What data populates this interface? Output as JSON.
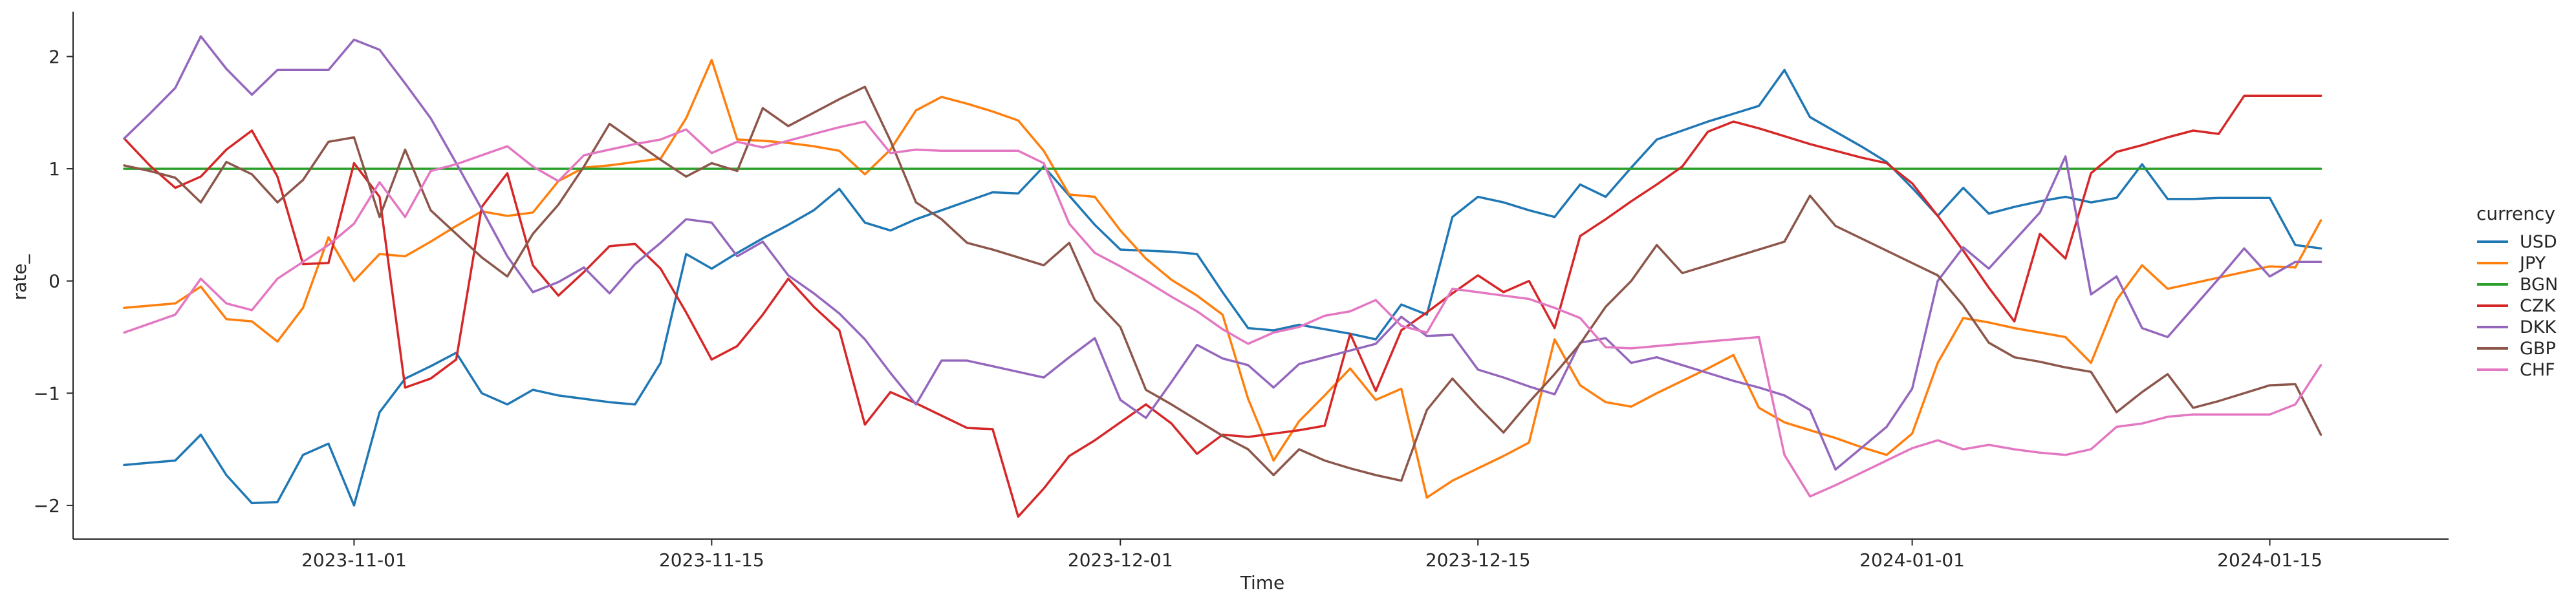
{
  "chart_data": {
    "type": "line",
    "xlabel": "Time",
    "ylabel": "rate_",
    "x_type": "date",
    "xlim": [
      "2023-10-21",
      "2024-01-22"
    ],
    "ylim": [
      -2.3,
      2.4
    ],
    "yticks": [
      -2,
      -1,
      0,
      1,
      2
    ],
    "ytick_labels": [
      "−2",
      "−1",
      "0",
      "1",
      "2"
    ],
    "xticks": [
      "2023-11-01",
      "2023-11-15",
      "2023-12-01",
      "2023-12-15",
      "2024-01-01",
      "2024-01-15"
    ],
    "grid": false,
    "legend": {
      "title": "currency",
      "placement": "right"
    },
    "colors": {
      "axis": "#262626",
      "text": "#262626",
      "background": "#ffffff"
    },
    "x": [
      "2023-10-23",
      "2023-10-24",
      "2023-10-25",
      "2023-10-26",
      "2023-10-27",
      "2023-10-28",
      "2023-10-29",
      "2023-10-30",
      "2023-10-31",
      "2023-11-01",
      "2023-11-02",
      "2023-11-03",
      "2023-11-04",
      "2023-11-05",
      "2023-11-06",
      "2023-11-07",
      "2023-11-08",
      "2023-11-09",
      "2023-11-10",
      "2023-11-11",
      "2023-11-12",
      "2023-11-13",
      "2023-11-14",
      "2023-11-15",
      "2023-11-16",
      "2023-11-17",
      "2023-11-18",
      "2023-11-19",
      "2023-11-20",
      "2023-11-21",
      "2023-11-22",
      "2023-11-23",
      "2023-11-24",
      "2023-11-25",
      "2023-11-26",
      "2023-11-27",
      "2023-11-28",
      "2023-11-29",
      "2023-11-30",
      "2023-12-01",
      "2023-12-02",
      "2023-12-03",
      "2023-12-04",
      "2023-12-05",
      "2023-12-06",
      "2023-12-07",
      "2023-12-08",
      "2023-12-09",
      "2023-12-10",
      "2023-12-11",
      "2023-12-12",
      "2023-12-13",
      "2023-12-14",
      "2023-12-15",
      "2023-12-16",
      "2023-12-17",
      "2023-12-18",
      "2023-12-19",
      "2023-12-20",
      "2023-12-21",
      "2023-12-22",
      "2023-12-23",
      "2023-12-24",
      "2023-12-25",
      "2023-12-26",
      "2023-12-27",
      "2023-12-28",
      "2023-12-29",
      "2023-12-30",
      "2023-12-31",
      "2024-01-01",
      "2024-01-02",
      "2024-01-03",
      "2024-01-04",
      "2024-01-05",
      "2024-01-06",
      "2024-01-07",
      "2024-01-08",
      "2024-01-09",
      "2024-01-10",
      "2024-01-11",
      "2024-01-12",
      "2024-01-13",
      "2024-01-14",
      "2024-01-15",
      "2024-01-16",
      "2024-01-17"
    ],
    "series": [
      {
        "name": "USD",
        "color": "#1f77b4",
        "values": [
          -1.64,
          -1.62,
          -1.6,
          -1.37,
          -1.73,
          -1.98,
          -1.97,
          -1.55,
          -1.45,
          -2.0,
          -1.17,
          -0.87,
          -0.76,
          -0.64,
          -1.0,
          -1.1,
          -0.97,
          -1.02,
          -1.05,
          -1.08,
          -1.1,
          -0.73,
          0.24,
          0.11,
          0.25,
          0.38,
          0.5,
          0.63,
          0.82,
          0.52,
          0.45,
          0.55,
          0.63,
          0.71,
          0.79,
          0.78,
          1.02,
          0.76,
          0.5,
          0.28,
          0.27,
          0.26,
          0.24,
          -0.1,
          -0.42,
          -0.44,
          -0.39,
          -0.43,
          -0.47,
          -0.52,
          -0.21,
          -0.3,
          0.57,
          0.75,
          0.7,
          0.63,
          0.57,
          0.86,
          0.75,
          1.01,
          1.26,
          1.34,
          1.42,
          1.49,
          1.56,
          1.88,
          1.46,
          1.33,
          1.2,
          1.06,
          0.83,
          0.58,
          0.83,
          0.6,
          0.66,
          0.71,
          0.75,
          0.7,
          0.74,
          1.04,
          0.73,
          0.73,
          0.74,
          0.74,
          0.74,
          0.32,
          0.29
        ]
      },
      {
        "name": "JPY",
        "color": "#ff7f0e",
        "values": [
          -0.24,
          -0.22,
          -0.2,
          -0.05,
          -0.34,
          -0.36,
          -0.54,
          -0.24,
          0.39,
          0.0,
          0.24,
          0.22,
          0.35,
          0.49,
          0.62,
          0.58,
          0.61,
          0.89,
          1.01,
          1.03,
          1.06,
          1.09,
          1.45,
          1.97,
          1.26,
          1.25,
          1.23,
          1.2,
          1.16,
          0.95,
          1.17,
          1.52,
          1.64,
          1.58,
          1.51,
          1.43,
          1.16,
          0.77,
          0.75,
          0.45,
          0.2,
          0.01,
          -0.13,
          -0.3,
          -1.05,
          -1.6,
          -1.25,
          -1.02,
          -0.78,
          -1.06,
          -0.96,
          -1.93,
          -1.78,
          -1.67,
          -1.56,
          -1.44,
          -0.52,
          -0.93,
          -1.08,
          -1.12,
          -1.0,
          -0.89,
          -0.78,
          -0.66,
          -1.13,
          -1.26,
          -1.33,
          -1.4,
          -1.48,
          -1.55,
          -1.36,
          -0.73,
          -0.33,
          -0.37,
          -0.42,
          -0.46,
          -0.5,
          -0.73,
          -0.17,
          0.14,
          -0.07,
          -0.02,
          0.03,
          0.08,
          0.13,
          0.12,
          0.54
        ]
      },
      {
        "name": "BGN",
        "color": "#2ca02c",
        "values": [
          1.0,
          1.0,
          1.0,
          1.0,
          1.0,
          1.0,
          1.0,
          1.0,
          1.0,
          1.0,
          1.0,
          1.0,
          1.0,
          1.0,
          1.0,
          1.0,
          1.0,
          1.0,
          1.0,
          1.0,
          1.0,
          1.0,
          1.0,
          1.0,
          1.0,
          1.0,
          1.0,
          1.0,
          1.0,
          1.0,
          1.0,
          1.0,
          1.0,
          1.0,
          1.0,
          1.0,
          1.0,
          1.0,
          1.0,
          1.0,
          1.0,
          1.0,
          1.0,
          1.0,
          1.0,
          1.0,
          1.0,
          1.0,
          1.0,
          1.0,
          1.0,
          1.0,
          1.0,
          1.0,
          1.0,
          1.0,
          1.0,
          1.0,
          1.0,
          1.0,
          1.0,
          1.0,
          1.0,
          1.0,
          1.0,
          1.0,
          1.0,
          1.0,
          1.0,
          1.0,
          1.0,
          1.0,
          1.0,
          1.0,
          1.0,
          1.0,
          1.0,
          1.0,
          1.0,
          1.0,
          1.0,
          1.0,
          1.0,
          1.0,
          1.0,
          1.0,
          1.0
        ]
      },
      {
        "name": "CZK",
        "color": "#d62728",
        "values": [
          1.27,
          1.03,
          0.83,
          0.93,
          1.17,
          1.34,
          0.93,
          0.15,
          0.16,
          1.05,
          0.75,
          -0.95,
          -0.87,
          -0.7,
          0.66,
          0.96,
          0.14,
          -0.13,
          0.08,
          0.31,
          0.33,
          0.11,
          -0.28,
          -0.7,
          -0.58,
          -0.3,
          0.02,
          -0.23,
          -0.44,
          -1.28,
          -0.99,
          -1.09,
          -1.2,
          -1.31,
          -1.32,
          -2.1,
          -1.85,
          -1.56,
          -1.42,
          -1.26,
          -1.1,
          -1.27,
          -1.54,
          -1.37,
          -1.39,
          -1.36,
          -1.33,
          -1.29,
          -0.47,
          -0.98,
          -0.44,
          -0.28,
          -0.11,
          0.05,
          -0.1,
          0.0,
          -0.42,
          0.4,
          0.55,
          0.71,
          0.86,
          1.02,
          1.33,
          1.42,
          1.36,
          1.29,
          1.22,
          1.16,
          1.1,
          1.05,
          0.87,
          0.58,
          0.27,
          -0.06,
          -0.36,
          0.42,
          0.2,
          0.96,
          1.15,
          1.21,
          1.28,
          1.34,
          1.31,
          1.65,
          1.65,
          1.65,
          1.65
        ]
      },
      {
        "name": "DKK",
        "color": "#9467bd",
        "values": [
          1.27,
          1.49,
          1.72,
          2.18,
          1.89,
          1.66,
          1.88,
          1.88,
          1.88,
          2.15,
          2.06,
          1.76,
          1.45,
          1.05,
          0.64,
          0.22,
          -0.1,
          -0.01,
          0.12,
          -0.11,
          0.15,
          0.34,
          0.55,
          0.52,
          0.22,
          0.35,
          0.05,
          -0.11,
          -0.29,
          -0.52,
          -0.82,
          -1.1,
          -0.71,
          -0.71,
          -0.76,
          -0.81,
          -0.86,
          -0.68,
          -0.51,
          -1.06,
          -1.22,
          -0.9,
          -0.57,
          -0.69,
          -0.75,
          -0.95,
          -0.74,
          -0.68,
          -0.62,
          -0.56,
          -0.32,
          -0.49,
          -0.48,
          -0.79,
          -0.86,
          -0.94,
          -1.01,
          -0.55,
          -0.51,
          -0.73,
          -0.68,
          -0.75,
          -0.82,
          -0.89,
          -0.95,
          -1.02,
          -1.15,
          -1.68,
          -1.49,
          -1.3,
          -0.96,
          0.0,
          0.3,
          0.11,
          0.36,
          0.61,
          1.11,
          -0.12,
          0.04,
          -0.42,
          -0.5,
          -0.24,
          0.02,
          0.29,
          0.04,
          0.17,
          0.17
        ]
      },
      {
        "name": "GBP",
        "color": "#8c564b",
        "values": [
          1.03,
          0.98,
          0.92,
          0.7,
          1.06,
          0.95,
          0.7,
          0.9,
          1.24,
          1.28,
          0.57,
          1.17,
          0.63,
          0.42,
          0.21,
          0.04,
          0.42,
          0.68,
          1.02,
          1.4,
          1.24,
          1.08,
          0.93,
          1.05,
          0.98,
          1.54,
          1.38,
          1.5,
          1.62,
          1.73,
          1.25,
          0.7,
          0.55,
          0.34,
          0.28,
          0.21,
          0.14,
          0.34,
          -0.17,
          -0.41,
          -0.97,
          -1.1,
          -1.24,
          -1.38,
          -1.5,
          -1.73,
          -1.5,
          -1.6,
          -1.67,
          -1.73,
          -1.78,
          -1.15,
          -0.87,
          -1.12,
          -1.35,
          -1.08,
          -0.83,
          -0.56,
          -0.23,
          0.0,
          0.32,
          0.07,
          0.14,
          0.21,
          0.28,
          0.35,
          0.76,
          0.49,
          0.38,
          0.27,
          0.16,
          0.05,
          -0.22,
          -0.55,
          -0.68,
          -0.72,
          -0.77,
          -0.81,
          -1.17,
          -0.99,
          -0.83,
          -1.13,
          -1.07,
          -1.0,
          -0.93,
          -0.92,
          -1.37
        ]
      },
      {
        "name": "CHF",
        "color": "#e377c2",
        "values": [
          -0.46,
          -0.38,
          -0.3,
          0.02,
          -0.2,
          -0.26,
          0.02,
          0.17,
          0.32,
          0.51,
          0.88,
          0.57,
          0.98,
          1.04,
          1.12,
          1.2,
          1.02,
          0.89,
          1.12,
          1.17,
          1.22,
          1.26,
          1.35,
          1.14,
          1.24,
          1.19,
          1.25,
          1.31,
          1.37,
          1.42,
          1.14,
          1.17,
          1.16,
          1.16,
          1.16,
          1.16,
          1.05,
          0.51,
          0.25,
          0.13,
          0.0,
          -0.14,
          -0.27,
          -0.43,
          -0.56,
          -0.46,
          -0.41,
          -0.31,
          -0.27,
          -0.17,
          -0.4,
          -0.46,
          -0.07,
          -0.1,
          -0.13,
          -0.16,
          -0.24,
          -0.33,
          -0.59,
          -0.6,
          -0.58,
          -0.56,
          -0.54,
          -0.52,
          -0.5,
          -1.55,
          -1.92,
          -1.82,
          -1.71,
          -1.6,
          -1.49,
          -1.42,
          -1.5,
          -1.46,
          -1.5,
          -1.53,
          -1.55,
          -1.5,
          -1.3,
          -1.27,
          -1.21,
          -1.19,
          -1.19,
          -1.19,
          -1.19,
          -1.1,
          -0.75
        ]
      }
    ]
  }
}
